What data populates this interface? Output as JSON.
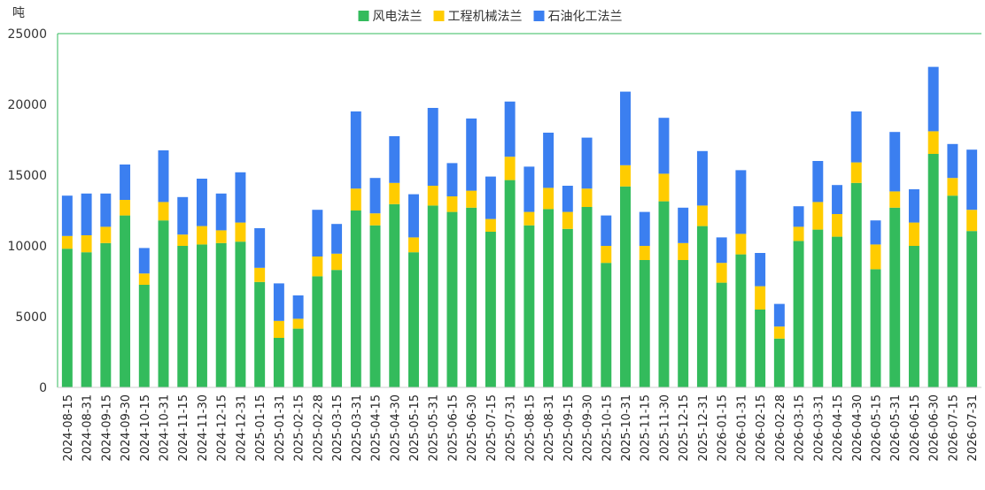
{
  "chart_data": {
    "type": "bar",
    "stacked": true,
    "ylabel": "吨",
    "ylim": [
      0,
      25000
    ],
    "yticks": [
      0,
      5000,
      10000,
      15000,
      20000,
      25000
    ],
    "legend_position": "top-center",
    "grid": false,
    "categories": [
      "2024-08-15",
      "2024-08-31",
      "2024-09-15",
      "2024-09-30",
      "2024-10-15",
      "2024-10-31",
      "2024-11-15",
      "2024-11-30",
      "2024-12-15",
      "2024-12-31",
      "2025-01-15",
      "2025-01-31",
      "2025-02-15",
      "2025-02-28",
      "2025-03-15",
      "2025-03-31",
      "2025-04-15",
      "2025-04-30",
      "2025-05-15",
      "2025-05-31",
      "2025-06-15",
      "2025-06-30",
      "2025-07-15",
      "2025-07-31",
      "2025-08-15",
      "2025-08-31",
      "2025-09-15",
      "2025-09-30",
      "2025-10-15",
      "2025-10-31",
      "2025-11-15",
      "2025-11-30",
      "2025-12-15",
      "2025-12-31",
      "2026-01-15",
      "2026-01-31",
      "2026-02-15",
      "2026-02-28",
      "2026-03-15",
      "2026-03-31",
      "2026-04-15",
      "2026-04-30",
      "2026-05-15",
      "2026-05-31",
      "2026-06-15",
      "2026-06-30",
      "2026-07-15",
      "2026-07-31"
    ],
    "series": [
      {
        "name": "风电法兰",
        "color": "#33bb5c",
        "values": [
          9800,
          9550,
          10200,
          12150,
          7250,
          11800,
          10000,
          10100,
          10200,
          10300,
          7450,
          3500,
          4150,
          7850,
          8300,
          12500,
          11450,
          12950,
          9550,
          12850,
          12400,
          12700,
          11000,
          14650,
          11450,
          12600,
          11200,
          12750,
          8800,
          14200,
          9000,
          13150,
          9000,
          11400,
          7400,
          9400,
          5500,
          3450,
          10350,
          11150,
          10650,
          14450,
          8350,
          12700,
          10000,
          16500,
          13550,
          11050
        ]
      },
      {
        "name": "工程机械法兰",
        "color": "#ffcc00",
        "values": [
          900,
          1200,
          1150,
          1100,
          800,
          1300,
          800,
          1300,
          900,
          1350,
          1000,
          1200,
          700,
          1400,
          1150,
          1550,
          850,
          1500,
          1050,
          1400,
          1100,
          1200,
          900,
          1650,
          950,
          1500,
          1200,
          1300,
          1200,
          1500,
          1000,
          1950,
          1200,
          1450,
          1400,
          1450,
          1650,
          850,
          1000,
          1950,
          1600,
          1450,
          1750,
          1150,
          1650,
          1600,
          1250,
          1500
        ]
      },
      {
        "name": "石油化工法兰",
        "color": "#3b7ff0",
        "values": [
          2850,
          2950,
          2350,
          2500,
          1800,
          3650,
          2650,
          3350,
          2600,
          3550,
          2800,
          2650,
          1650,
          3300,
          2100,
          5450,
          2500,
          3300,
          3050,
          5500,
          2350,
          5100,
          3000,
          3900,
          3200,
          3900,
          1850,
          3600,
          2150,
          5200,
          2400,
          3950,
          2500,
          3850,
          1800,
          4500,
          2350,
          1600,
          1450,
          2900,
          2050,
          3600,
          1700,
          4200,
          2350,
          4550,
          2400,
          4250
        ]
      }
    ]
  }
}
